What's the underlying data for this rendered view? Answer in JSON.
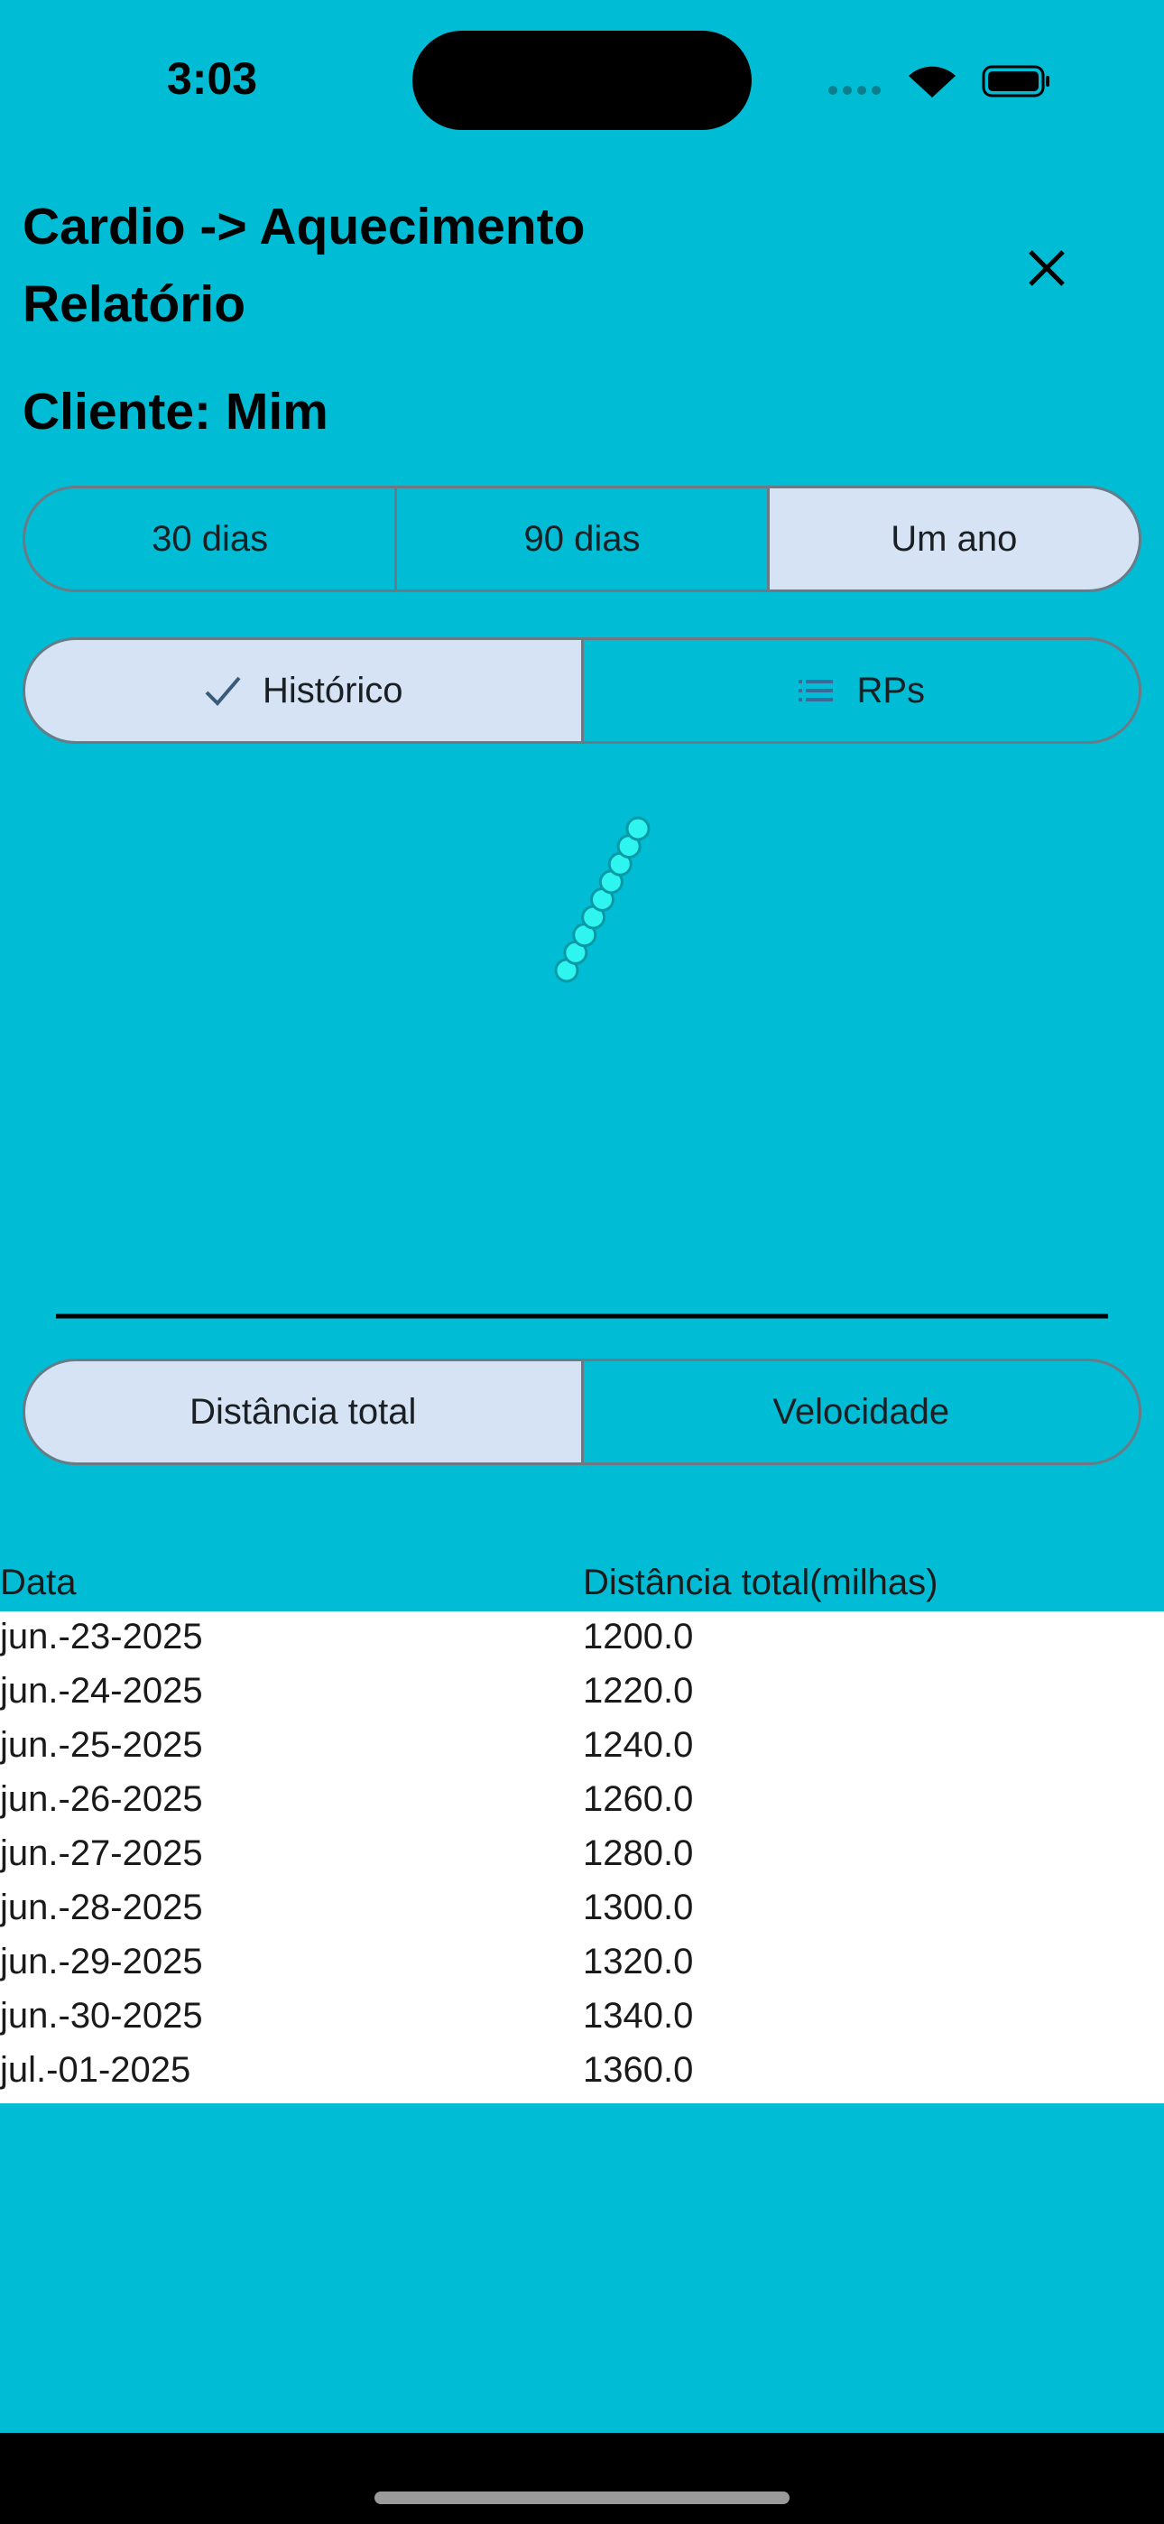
{
  "status": {
    "time": "3:03",
    "icons": [
      "signal-icon",
      "wifi-icon",
      "battery-icon"
    ]
  },
  "header": {
    "title_line1": "Cardio -> Aquecimento",
    "title_line2": "Relatório",
    "client": "Cliente: Mim",
    "close_icon": "close-icon"
  },
  "period_tabs": [
    {
      "label": "30 dias",
      "selected": false
    },
    {
      "label": "90 dias",
      "selected": false
    },
    {
      "label": "Um ano",
      "selected": true
    }
  ],
  "view_tabs": [
    {
      "label": "Histórico",
      "icon": "check-icon",
      "selected": true
    },
    {
      "label": "RPs",
      "icon": "list-icon",
      "selected": false
    }
  ],
  "metric_tabs": [
    {
      "label": "Distância total",
      "selected": true
    },
    {
      "label": "Velocidade",
      "selected": false
    }
  ],
  "colors": {
    "background": "#00bcd4",
    "selected": "#d6e3f5",
    "point": "#2ef5f0"
  },
  "chart_data": {
    "type": "scatter",
    "x": [
      "jun.-23-2025",
      "jun.-24-2025",
      "jun.-25-2025",
      "jun.-26-2025",
      "jun.-27-2025",
      "jun.-28-2025",
      "jun.-29-2025",
      "jun.-30-2025",
      "jul.-01-2025"
    ],
    "values": [
      1200,
      1220,
      1240,
      1260,
      1280,
      1300,
      1320,
      1340,
      1360
    ],
    "grid": false
  },
  "table": {
    "headers": [
      "Data",
      "Distância total(milhas)"
    ],
    "rows": [
      [
        "jun.-23-2025",
        "1200.0"
      ],
      [
        "jun.-24-2025",
        "1220.0"
      ],
      [
        "jun.-25-2025",
        "1240.0"
      ],
      [
        "jun.-26-2025",
        "1260.0"
      ],
      [
        "jun.-27-2025",
        "1280.0"
      ],
      [
        "jun.-28-2025",
        "1300.0"
      ],
      [
        "jun.-29-2025",
        "1320.0"
      ],
      [
        "jun.-30-2025",
        "1340.0"
      ],
      [
        "jul.-01-2025",
        "1360.0"
      ]
    ]
  }
}
